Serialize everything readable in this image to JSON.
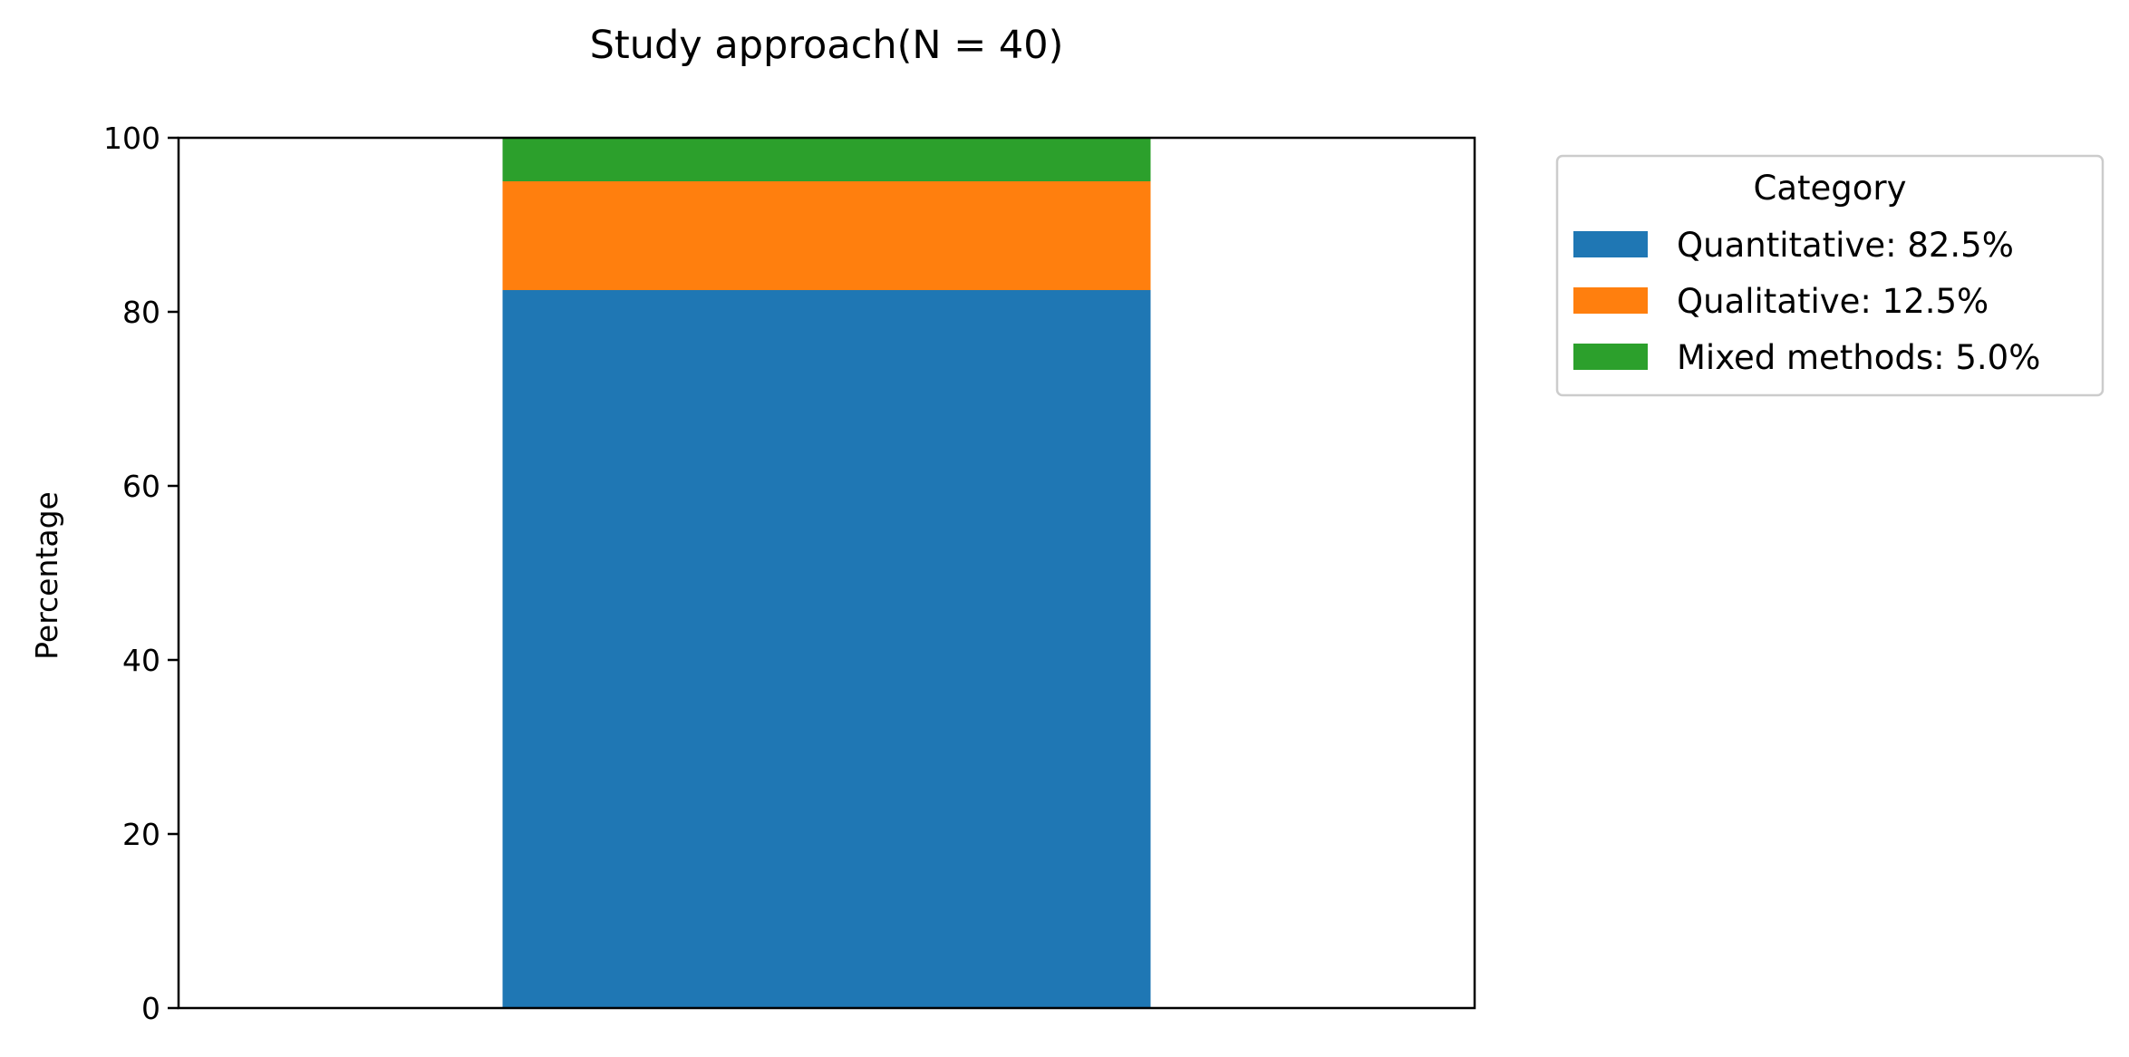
{
  "chart_data": {
    "type": "bar",
    "stacked": true,
    "title": "Study approach(N = 40)",
    "xlabel": "",
    "ylabel": "Percentage",
    "ylim": [
      0,
      100
    ],
    "yticks": [
      "0",
      "20",
      "40",
      "60",
      "80",
      "100"
    ],
    "categories": [
      ""
    ],
    "series": [
      {
        "name": "Quantitative: 82.5%",
        "values": [
          82.5
        ],
        "color": "#1f77b4"
      },
      {
        "name": "Qualitative: 12.5%",
        "values": [
          12.5
        ],
        "color": "#ff7f0e"
      },
      {
        "name": "Mixed methods: 5.0%",
        "values": [
          5.0
        ],
        "color": "#2ca02c"
      }
    ],
    "legend": {
      "title": "Category",
      "placement": "outside-top-right"
    },
    "grid": false
  }
}
